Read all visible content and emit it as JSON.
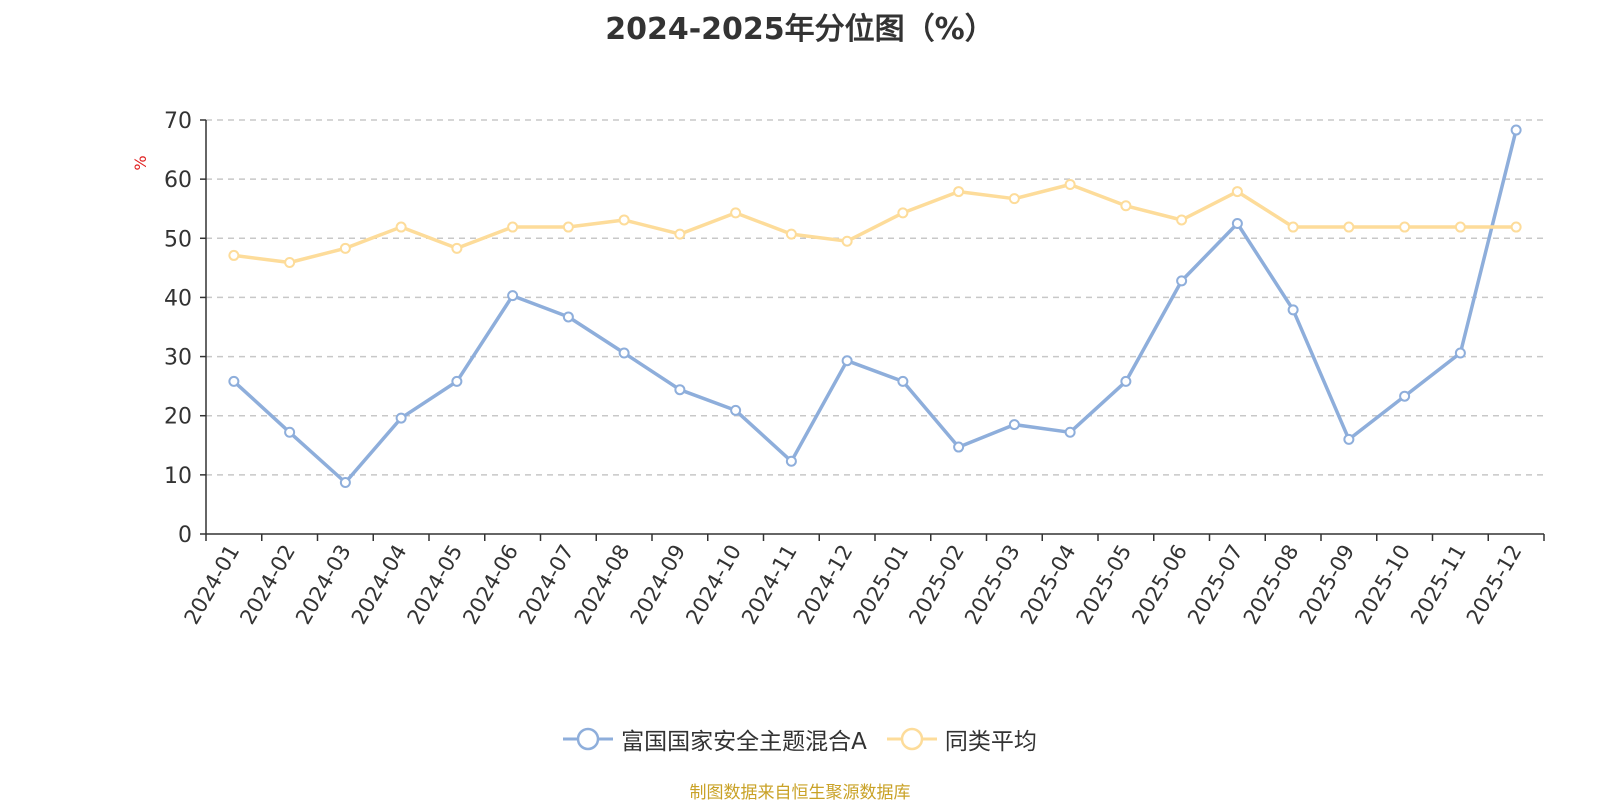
{
  "chart_data": {
    "type": "line",
    "title": "2024-2025年分位图（%）",
    "ylabel": "%",
    "xlabel": "",
    "ylim": [
      0,
      70
    ],
    "yticks": [
      0,
      10,
      20,
      30,
      40,
      50,
      60,
      70
    ],
    "grid": true,
    "legend_position": "bottom-center",
    "categories": [
      "2024-01",
      "2024-02",
      "2024-03",
      "2024-04",
      "2024-05",
      "2024-06",
      "2024-07",
      "2024-08",
      "2024-09",
      "2024-10",
      "2024-11",
      "2024-12",
      "2025-01",
      "2025-02",
      "2025-03",
      "2025-04",
      "2025-05",
      "2025-06",
      "2025-07",
      "2025-08",
      "2025-09",
      "2025-10",
      "2025-11",
      "2025-12"
    ],
    "series": [
      {
        "name": "富国国家安全主题混合A",
        "color": "#8eaedb",
        "values": [
          25.8,
          17.2,
          8.7,
          19.6,
          25.8,
          40.3,
          36.7,
          30.6,
          24.4,
          20.9,
          12.3,
          29.3,
          25.8,
          14.7,
          18.5,
          17.2,
          25.8,
          42.8,
          52.5,
          37.9,
          16.0,
          23.3,
          30.6,
          68.3
        ]
      },
      {
        "name": "同类平均",
        "color": "#fddc9a",
        "values": [
          47.1,
          45.9,
          48.3,
          51.9,
          48.3,
          51.9,
          51.9,
          53.1,
          50.7,
          54.3,
          50.7,
          49.5,
          54.3,
          57.9,
          56.7,
          59.1,
          55.5,
          53.1,
          57.9,
          51.9,
          51.9,
          51.9,
          51.9,
          51.9
        ]
      }
    ]
  },
  "colors": {
    "unit_label": "#e02020",
    "source_text": "#c9a227",
    "grid": "#c8c8c8",
    "axis": "#333333"
  },
  "footer": {
    "source": "制图数据来自恒生聚源数据库"
  }
}
